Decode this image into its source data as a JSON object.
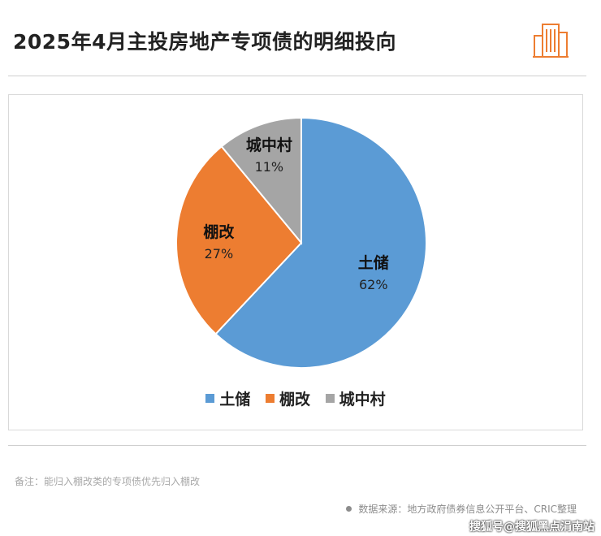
{
  "header": {
    "title": "2025年4月主投房地产专项债的明细投向"
  },
  "chart_data": {
    "type": "pie",
    "title": "2025年4月主投房地产专项债的明细投向",
    "series": [
      {
        "name": "土储",
        "value": 62,
        "label": "62%",
        "color": "#5B9BD5"
      },
      {
        "name": "棚改",
        "value": 27,
        "label": "27%",
        "color": "#ED7D31"
      },
      {
        "name": "城中村",
        "value": 11,
        "label": "11%",
        "color": "#A5A5A5"
      }
    ],
    "legend_placement": "bottom"
  },
  "legend": {
    "items": [
      {
        "label": "土储",
        "color": "#5B9BD5"
      },
      {
        "label": "棚改",
        "color": "#ED7D31"
      },
      {
        "label": "城中村",
        "color": "#A5A5A5"
      }
    ]
  },
  "footer": {
    "note": "备注：能归入棚改类的专项债优先归入棚改",
    "source": "数据来源：地方政府债券信息公开平台、CRIC整理",
    "credit": "搜狐号@搜狐黑点涓南站"
  },
  "colors": {
    "accent_orange": "#ED7D31",
    "title_text": "#222222",
    "rule": "#CFCFCF"
  },
  "icons": {
    "logo": "building-icon"
  }
}
